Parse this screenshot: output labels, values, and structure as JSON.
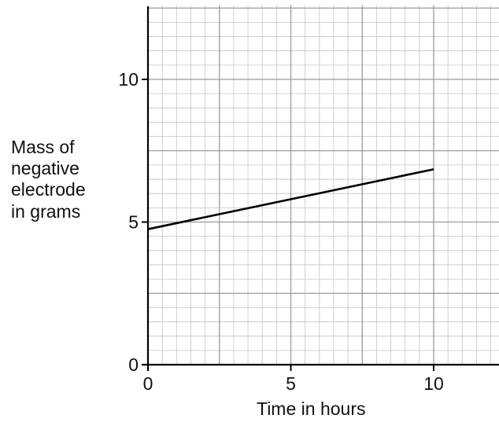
{
  "chart_data": {
    "type": "line",
    "xlabel": "Time in hours",
    "ylabel_lines": [
      "Mass of",
      "negative",
      "electrode",
      "in grams"
    ],
    "x_ticks": [
      0,
      5,
      10
    ],
    "x_tick_labels": [
      "0",
      "5",
      "10"
    ],
    "y_ticks": [
      0,
      5,
      10
    ],
    "y_tick_labels": [
      "0",
      "5",
      "10"
    ],
    "xlim": [
      0,
      12.5
    ],
    "ylim": [
      0,
      12.6
    ],
    "grid": {
      "minor_step": 0.5,
      "major_step": 2.5
    },
    "series": [
      {
        "x": [
          0,
          10
        ],
        "y": [
          4.75,
          6.85
        ]
      }
    ]
  }
}
